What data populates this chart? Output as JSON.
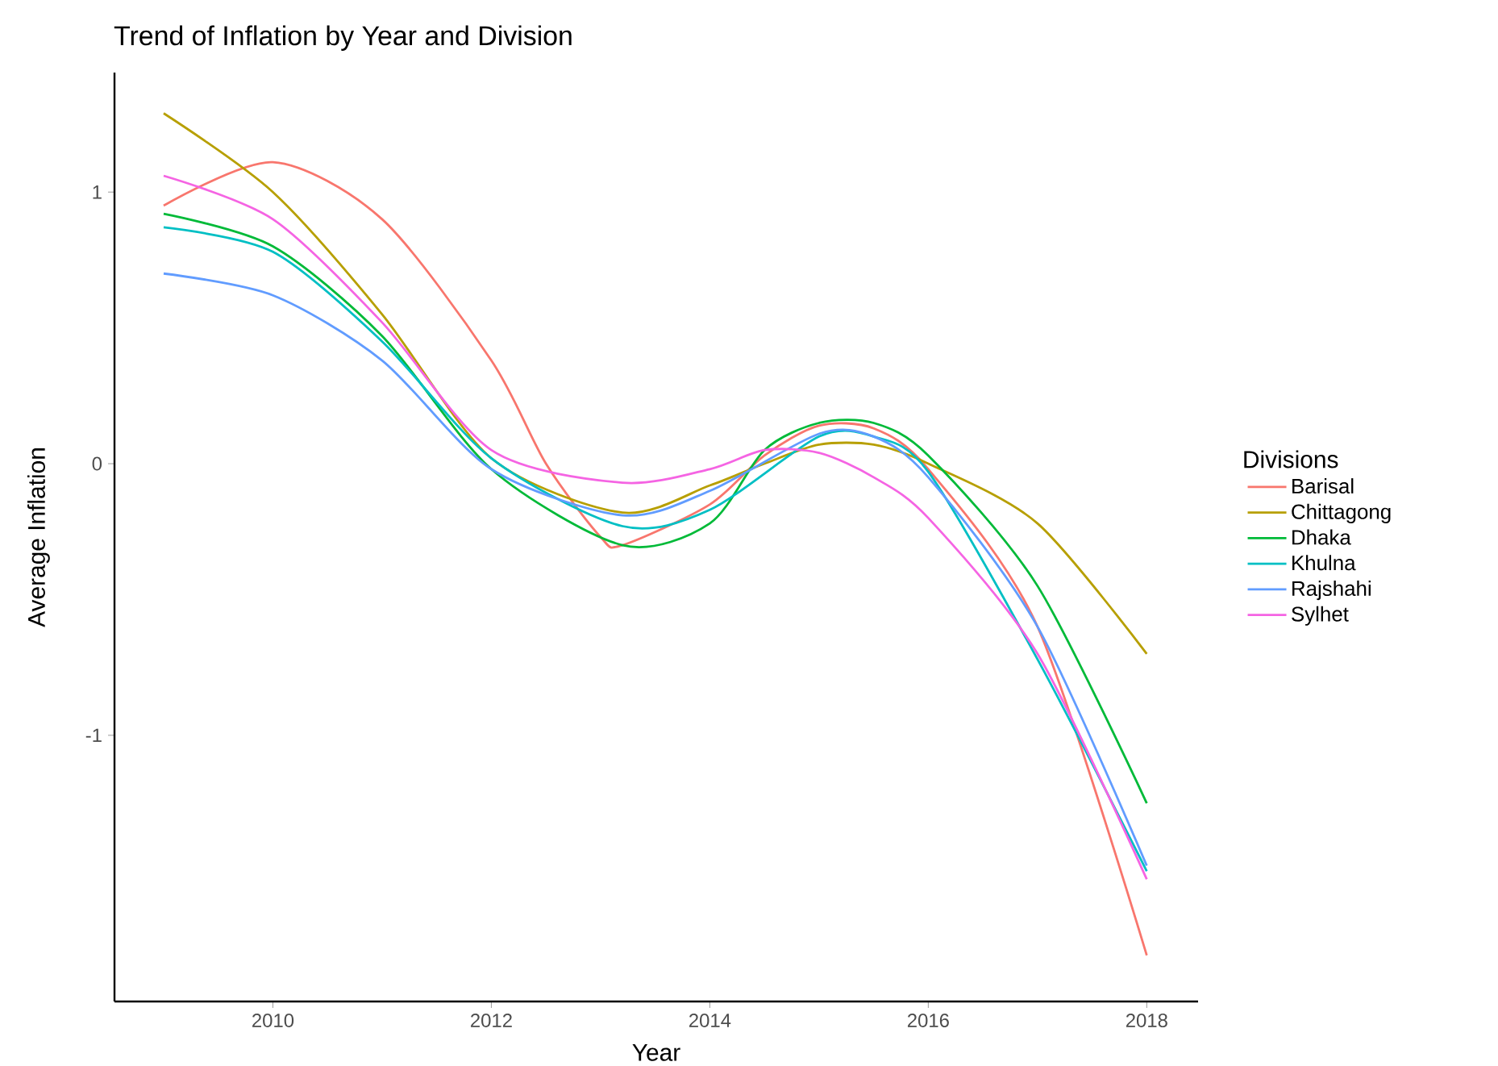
{
  "chart_data": {
    "type": "line",
    "title": "Trend of Inflation by Year and Division",
    "xlabel": "Year",
    "ylabel": "Average Inflation",
    "legend_title": "Divisions",
    "legend": "right",
    "grid": false,
    "xlim": [
      2008.55,
      2018.47
    ],
    "ylim": [
      -1.98,
      1.44
    ],
    "xticks": [
      2010,
      2012,
      2014,
      2016,
      2018
    ],
    "yticks": [
      -1,
      0,
      1
    ],
    "series": [
      {
        "name": "Barisal",
        "color": "#F8766D",
        "x": [
          2009,
          2010,
          2011,
          2012,
          2012.5,
          2013,
          2013.2,
          2014,
          2014.5,
          2015,
          2015.5,
          2016,
          2017,
          2018
        ],
        "values": [
          0.95,
          1.11,
          0.9,
          0.38,
          0.0,
          -0.27,
          -0.3,
          -0.15,
          0.03,
          0.14,
          0.13,
          -0.02,
          -0.6,
          -1.81
        ]
      },
      {
        "name": "Chittagong",
        "color": "#B79F00",
        "x": [
          2009,
          2010,
          2011,
          2012,
          2013.2,
          2014,
          2014.5,
          2015,
          2015.5,
          2016,
          2017,
          2018
        ],
        "values": [
          1.29,
          1.0,
          0.55,
          0.02,
          -0.18,
          -0.08,
          0.0,
          0.07,
          0.07,
          0.0,
          -0.22,
          -0.7
        ]
      },
      {
        "name": "Dhaka",
        "color": "#00BA38",
        "x": [
          2009,
          2010,
          2011,
          2012,
          2013.2,
          2014,
          2014.5,
          2015,
          2015.5,
          2016,
          2017,
          2018
        ],
        "values": [
          0.92,
          0.8,
          0.47,
          -0.02,
          -0.3,
          -0.22,
          0.05,
          0.15,
          0.15,
          0.03,
          -0.45,
          -1.25
        ]
      },
      {
        "name": "Khulna",
        "color": "#00BFC4",
        "x": [
          2009,
          2010,
          2011,
          2012,
          2013.2,
          2014,
          2015,
          2015.5,
          2016,
          2017,
          2018
        ],
        "values": [
          0.87,
          0.78,
          0.45,
          0.02,
          -0.23,
          -0.17,
          0.1,
          0.1,
          -0.03,
          -0.72,
          -1.5
        ]
      },
      {
        "name": "Rajshahi",
        "color": "#619CFF",
        "x": [
          2009,
          2010,
          2011,
          2012,
          2013.2,
          2014,
          2015,
          2015.5,
          2016,
          2017,
          2018
        ],
        "values": [
          0.7,
          0.62,
          0.38,
          -0.02,
          -0.19,
          -0.1,
          0.11,
          0.1,
          -0.05,
          -0.6,
          -1.48
        ]
      },
      {
        "name": "Sylhet",
        "color": "#F564E3",
        "x": [
          2009,
          2010,
          2011,
          2012,
          2013.2,
          2014,
          2014.5,
          2015,
          2015.5,
          2016,
          2017,
          2018
        ],
        "values": [
          1.06,
          0.9,
          0.52,
          0.05,
          -0.07,
          -0.02,
          0.05,
          0.04,
          -0.05,
          -0.2,
          -0.7,
          -1.53
        ]
      }
    ]
  }
}
